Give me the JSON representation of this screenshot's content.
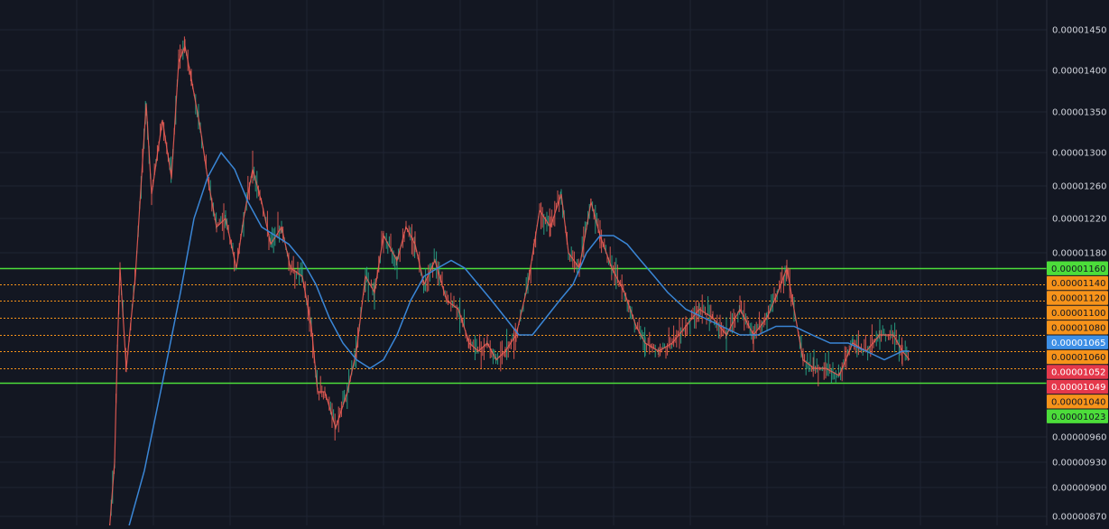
{
  "chart_data": {
    "type": "line",
    "title": "",
    "xlabel": "",
    "ylabel": "",
    "x_range": [
      0,
      1160
    ],
    "ylim": [
      8.4e-06,
      1.49e-05
    ],
    "grid": true,
    "y_tick_values": [
      8.7e-06,
      9e-06,
      9.3e-06,
      9.6e-06,
      1.18e-05,
      1.22e-05,
      1.26e-05,
      1.3e-05,
      1.35e-05,
      1.4e-05,
      1.45e-05
    ],
    "y_tick_labels": [
      "0.00000870",
      "0.00000900",
      "0.00000930",
      "0.00000960",
      "0.00001180",
      "0.00001220",
      "0.00001260",
      "0.00001300",
      "0.00001350",
      "0.00001400",
      "0.00001450"
    ],
    "levels": [
      {
        "value": 1.16e-05,
        "label": "0.00001160",
        "color": "#4cdd3a",
        "style": "solid",
        "badge": true
      },
      {
        "value": 1.14e-05,
        "label": "0.00001140",
        "color": "#f7931a",
        "style": "dotted",
        "badge": true
      },
      {
        "value": 1.12e-05,
        "label": "0.00001120",
        "color": "#f7931a",
        "style": "dotted",
        "badge": true
      },
      {
        "value": 1.1e-05,
        "label": "0.00001100",
        "color": "#f7931a",
        "style": "dotted",
        "badge": true
      },
      {
        "value": 1.08e-05,
        "label": "0.00001080",
        "color": "#f7931a",
        "style": "dotted",
        "badge": true
      },
      {
        "value": 1.06e-05,
        "label": "0.00001060",
        "color": "#f7931a",
        "style": "dotted",
        "badge": true
      },
      {
        "value": 1.04e-05,
        "label": "0.00001040",
        "color": "#f7931a",
        "style": "dotted",
        "badge": true
      },
      {
        "value": 1.02e-05,
        "label": "0.00001023",
        "color": "#4cdd3a",
        "style": "solid",
        "badge": true
      }
    ],
    "markers": [
      {
        "label": "0.00001065",
        "color": "#3d8fe6"
      },
      {
        "label": "0.00001052",
        "color": "#e5384b"
      },
      {
        "label": "0.00001049",
        "color": "#e5384b"
      }
    ],
    "series": [
      {
        "style": "candlestick-band",
        "color": "#e85c54",
        "up_color": "#29a88a",
        "x": [
          95,
          120,
          127,
          130,
          133,
          140,
          150,
          162,
          168,
          180,
          190,
          198,
          205,
          212,
          222,
          230,
          240,
          250,
          262,
          270,
          280,
          290,
          300,
          312,
          322,
          335,
          345,
          352,
          360,
          372,
          385,
          395,
          405,
          415,
          425,
          440,
          450,
          460,
          470,
          482,
          495,
          508,
          520,
          530,
          540,
          550,
          560,
          572,
          585,
          592,
          598,
          610,
          622,
          630,
          642,
          655,
          665,
          678,
          692,
          705,
          715,
          730,
          745,
          760,
          775,
          790,
          805,
          820,
          835,
          850,
          862,
          872,
          880,
          890,
          902,
          915,
          930,
          945,
          960,
          975,
          990,
          1000,
          1008
        ],
        "values": [
          8.5e-06,
          8.4e-06,
          9.3e-06,
          1.06e-05,
          1.16e-05,
          1.04e-05,
          1.15e-05,
          1.36e-05,
          1.25e-05,
          1.34e-05,
          1.27e-05,
          1.41e-05,
          1.43e-05,
          1.39e-05,
          1.33e-05,
          1.27e-05,
          1.21e-05,
          1.22e-05,
          1.16e-05,
          1.22e-05,
          1.28e-05,
          1.24e-05,
          1.19e-05,
          1.21e-05,
          1.16e-05,
          1.15e-05,
          1.09e-05,
          1.01e-05,
          1.01e-05,
          9.7e-06,
          1.01e-05,
          1.06e-05,
          1.15e-05,
          1.13e-05,
          1.2e-05,
          1.17e-05,
          1.21e-05,
          1.19e-05,
          1.14e-05,
          1.17e-05,
          1.12e-05,
          1.11e-05,
          1.07e-05,
          1.06e-05,
          1.07e-05,
          1.05e-05,
          1.06e-05,
          1.08e-05,
          1.14e-05,
          1.19e-05,
          1.23e-05,
          1.21e-05,
          1.25e-05,
          1.18e-05,
          1.16e-05,
          1.24e-05,
          1.2e-05,
          1.16e-05,
          1.13e-05,
          1.09e-05,
          1.07e-05,
          1.06e-05,
          1.07e-05,
          1.09e-05,
          1.11e-05,
          1.1e-05,
          1.08e-05,
          1.11e-05,
          1.08e-05,
          1.1e-05,
          1.13e-05,
          1.16e-05,
          1.11e-05,
          1.05e-05,
          1.04e-05,
          1.04e-05,
          1.03e-05,
          1.07e-05,
          1.06e-05,
          1.08e-05,
          1.08e-05,
          1.06e-05,
          1.05e-05
        ]
      },
      {
        "style": "moving-average",
        "color": "#3a86d6",
        "x": [
          140,
          160,
          180,
          200,
          215,
          230,
          245,
          260,
          275,
          290,
          305,
          320,
          335,
          350,
          365,
          380,
          395,
          410,
          425,
          440,
          455,
          470,
          485,
          500,
          515,
          530,
          545,
          560,
          575,
          590,
          605,
          620,
          635,
          650,
          665,
          680,
          695,
          710,
          725,
          740,
          760,
          780,
          800,
          820,
          840,
          860,
          880,
          900,
          920,
          940,
          960,
          980,
          1000,
          1008
        ],
        "values": [
          8.5e-06,
          9.2e-06,
          1.02e-05,
          1.13e-05,
          1.22e-05,
          1.27e-05,
          1.3e-05,
          1.28e-05,
          1.24e-05,
          1.21e-05,
          1.2e-05,
          1.19e-05,
          1.17e-05,
          1.14e-05,
          1.1e-05,
          1.07e-05,
          1.05e-05,
          1.04e-05,
          1.05e-05,
          1.08e-05,
          1.12e-05,
          1.15e-05,
          1.16e-05,
          1.17e-05,
          1.16e-05,
          1.14e-05,
          1.12e-05,
          1.1e-05,
          1.08e-05,
          1.08e-05,
          1.1e-05,
          1.12e-05,
          1.14e-05,
          1.18e-05,
          1.2e-05,
          1.2e-05,
          1.19e-05,
          1.17e-05,
          1.15e-05,
          1.13e-05,
          1.11e-05,
          1.1e-05,
          1.09e-05,
          1.08e-05,
          1.08e-05,
          1.09e-05,
          1.09e-05,
          1.08e-05,
          1.07e-05,
          1.07e-05,
          1.06e-05,
          1.05e-05,
          1.06e-05,
          1.06e-05
        ]
      }
    ],
    "colors": {
      "background": "#131722",
      "grid": "#1f2433",
      "axis_text": "#d1d4dc",
      "border": "#2a2e39"
    }
  }
}
